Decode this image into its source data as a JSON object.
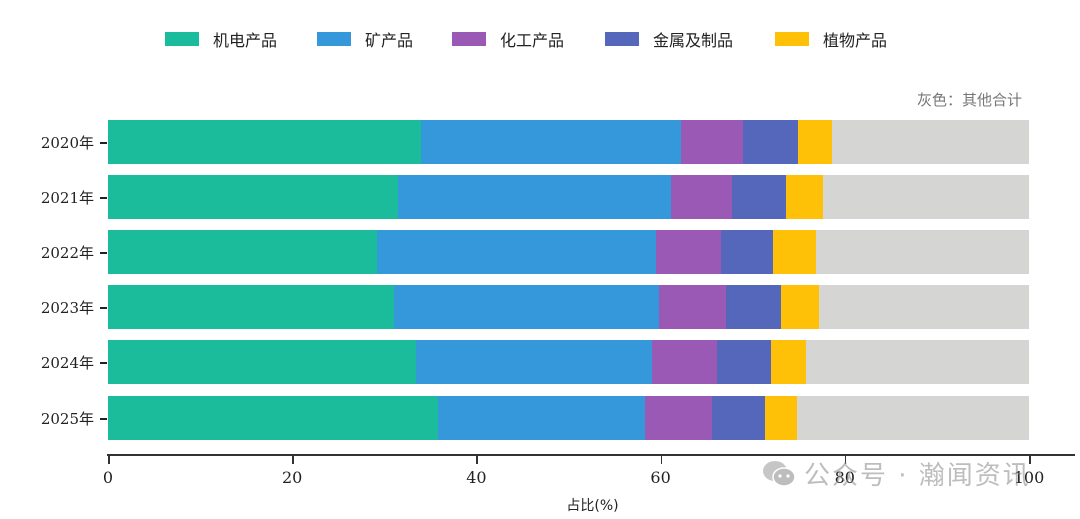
{
  "chart_data": {
    "type": "bar",
    "orientation": "horizontal",
    "stacked": true,
    "title": "",
    "xlabel": "占比(%)",
    "ylabel": "",
    "xlim": [
      0,
      100
    ],
    "xticks": [
      0,
      20,
      40,
      60,
      80,
      100
    ],
    "grid": false,
    "legend_position": "top",
    "categories": [
      "2020年",
      "2021年",
      "2022年",
      "2023年",
      "2024年",
      "2025年"
    ],
    "series": [
      {
        "name": "机电产品",
        "color": "#1abc9c",
        "values": [
          34.0,
          31.5,
          29.2,
          31.1,
          33.4,
          35.8
        ]
      },
      {
        "name": "矿产品",
        "color": "#3498db",
        "values": [
          28.2,
          29.6,
          30.3,
          28.7,
          25.7,
          22.5
        ]
      },
      {
        "name": "化工产品",
        "color": "#9b59b6",
        "values": [
          6.7,
          6.7,
          7.1,
          7.3,
          7.0,
          7.3
        ]
      },
      {
        "name": "金属及制品",
        "color": "#5567bb",
        "values": [
          6.0,
          5.8,
          5.6,
          6.0,
          5.9,
          5.7
        ]
      },
      {
        "name": "植物产品",
        "color": "#ffc107",
        "values": [
          3.7,
          4.0,
          4.7,
          4.1,
          3.8,
          3.5
        ]
      },
      {
        "name": "其他合计",
        "color": "#d5d5d3",
        "values": [
          21.4,
          22.4,
          23.1,
          22.8,
          24.2,
          25.2
        ]
      }
    ],
    "annotations": [
      "灰色：其他合计"
    ]
  },
  "legend": [
    {
      "label": "机电产品",
      "color": "#1abc9c"
    },
    {
      "label": "矿产品",
      "color": "#3498db"
    },
    {
      "label": "化工产品",
      "color": "#9b59b6"
    },
    {
      "label": "金属及制品",
      "color": "#5567bb"
    },
    {
      "label": "植物产品",
      "color": "#ffc107"
    }
  ],
  "note": "灰色：其他合计",
  "watermark": "公众号 · 瀚闻资讯"
}
